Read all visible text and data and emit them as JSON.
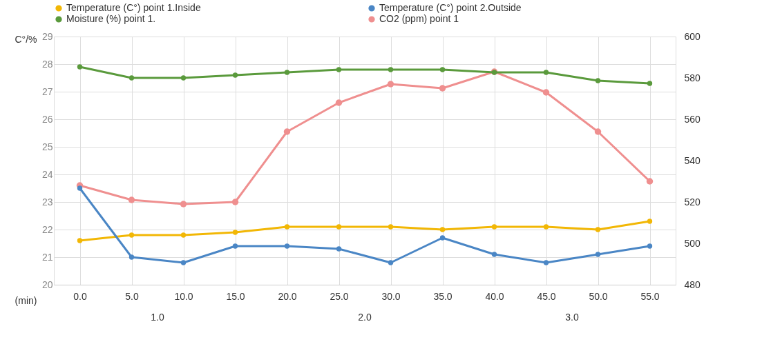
{
  "chart_data": {
    "type": "line",
    "ylabel": "C°/%",
    "xlabel": "(min)",
    "categories": [
      "0.0",
      "5.0",
      "10.0",
      "15.0",
      "20.0",
      "25.0",
      "30.0",
      "35.0",
      "40.0",
      "45.0",
      "50.0",
      "55.0"
    ],
    "series": [
      {
        "name": "Temperature (C°) point 1.Inside",
        "color": "#f2b705",
        "values": [
          21.6,
          21.8,
          21.8,
          21.9,
          22.1,
          22.1,
          22.1,
          22.0,
          22.1,
          22.1,
          22.0,
          22.3
        ]
      },
      {
        "name": "Temperature (C°) point 2.Outside",
        "color": "#4a86c5",
        "values": [
          23.5,
          21.0,
          20.8,
          21.4,
          21.4,
          21.3,
          20.8,
          21.7,
          21.1,
          20.8,
          21.1,
          21.4
        ]
      },
      {
        "name": "Moisture (%)  point 1.",
        "color": "#5a9a3c",
        "values": [
          27.9,
          27.5,
          27.5,
          27.6,
          27.7,
          27.8,
          27.8,
          27.8,
          27.7,
          27.7,
          27.4,
          27.3
        ]
      },
      {
        "name": "CO2  (ppm) point 1",
        "color": "#ef8f8f",
        "axis": "y2",
        "values": [
          528,
          521,
          519,
          520,
          554,
          568,
          577,
          575,
          583,
          573,
          554,
          530
        ]
      }
    ],
    "ylim": [
      20,
      29
    ],
    "yticks": [
      20,
      21,
      22,
      23,
      24,
      25,
      26,
      27,
      28,
      29
    ],
    "y2lim": [
      480,
      600
    ],
    "y2ticks": [
      480,
      500,
      520,
      540,
      560,
      580,
      600
    ],
    "annotations": [
      "1.0",
      "2.0",
      "3.0"
    ],
    "grid": true,
    "legend": "top",
    "marker": "circle",
    "line_style": "solid"
  }
}
